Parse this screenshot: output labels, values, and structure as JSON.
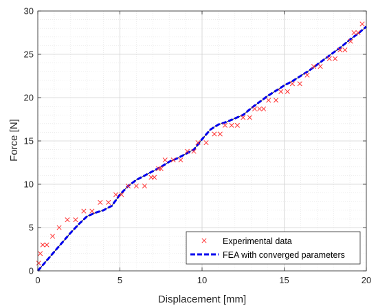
{
  "chart_data": {
    "type": "scatter",
    "xlabel": "Displacement [mm]",
    "ylabel": "Force [N]",
    "xlim": [
      0,
      20
    ],
    "ylim": [
      0,
      30
    ],
    "xticks": [
      0,
      5,
      10,
      15,
      20
    ],
    "yticks": [
      0,
      5,
      10,
      15,
      20,
      25,
      30
    ],
    "grid": true,
    "minor_grid": true,
    "legend_position": "bottom-right",
    "series": [
      {
        "name": "Experimental data",
        "style": "markers",
        "marker": "x",
        "color": "#ff3333",
        "x": [
          0.05,
          0.15,
          0.3,
          0.55,
          0.9,
          1.3,
          1.8,
          2.3,
          2.8,
          3.3,
          3.8,
          4.3,
          4.75,
          5.1,
          5.5,
          6.0,
          6.5,
          6.9,
          7.1,
          7.35,
          7.5,
          7.75,
          8.25,
          8.7,
          9.1,
          9.5,
          9.75,
          10.25,
          10.75,
          11.1,
          11.4,
          11.8,
          12.15,
          12.5,
          12.9,
          13.2,
          13.5,
          13.75,
          14.05,
          14.5,
          14.8,
          15.2,
          15.5,
          15.95,
          16.4,
          16.8,
          17.2,
          17.75,
          18.1,
          18.4,
          18.7,
          19.05,
          19.25,
          19.5,
          19.75
        ],
        "y": [
          0.9,
          2.0,
          3.0,
          3.0,
          4.0,
          5.0,
          5.9,
          5.9,
          6.9,
          6.9,
          7.9,
          7.9,
          8.8,
          8.8,
          9.8,
          9.8,
          9.8,
          10.8,
          10.8,
          11.8,
          11.8,
          12.8,
          12.8,
          12.8,
          13.8,
          13.8,
          14.8,
          14.8,
          15.8,
          15.8,
          16.8,
          16.8,
          16.8,
          17.7,
          17.7,
          18.7,
          18.7,
          18.7,
          19.7,
          19.7,
          20.7,
          20.7,
          21.6,
          21.6,
          22.6,
          23.6,
          23.6,
          24.5,
          24.5,
          25.5,
          25.5,
          26.5,
          27.5,
          27.5,
          28.5
        ]
      },
      {
        "name": "FEA with converged parameters",
        "style": "dashed-line",
        "color": "#0000ee",
        "x": [
          0,
          0.5,
          1.0,
          1.5,
          2.0,
          2.5,
          3.0,
          3.5,
          4.0,
          4.5,
          5.0,
          5.5,
          6.0,
          6.5,
          7.0,
          7.5,
          8.0,
          8.5,
          9.0,
          9.5,
          10.0,
          10.5,
          11.0,
          11.5,
          12.0,
          12.5,
          13.0,
          13.5,
          14.0,
          14.5,
          15.0,
          15.5,
          16.0,
          16.5,
          17.0,
          17.5,
          18.0,
          18.5,
          19.0,
          19.5,
          20.0
        ],
        "y": [
          0,
          1.1,
          2.2,
          3.3,
          4.4,
          5.4,
          6.3,
          6.7,
          7.0,
          7.5,
          8.8,
          9.8,
          10.5,
          11.0,
          11.5,
          12.0,
          12.6,
          13.0,
          13.5,
          14.0,
          15.2,
          16.3,
          16.9,
          17.2,
          17.6,
          18.0,
          18.8,
          19.5,
          20.2,
          20.8,
          21.4,
          21.9,
          22.5,
          23.1,
          23.8,
          24.5,
          25.2,
          25.9,
          26.7,
          27.4,
          28.2
        ]
      }
    ]
  }
}
